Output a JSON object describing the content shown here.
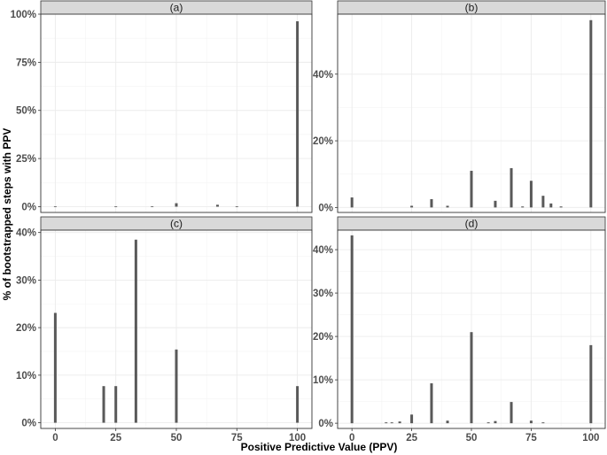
{
  "chart_data": {
    "type": "bar",
    "layout": "facet_wrap_2x2",
    "xlabel": "Positive Predictive Value (PPV)",
    "ylabel": "% of bootstrapped steps with PPV",
    "x_ticks": [
      0,
      25,
      50,
      75,
      100
    ],
    "x_tick_labels": [
      "0",
      "25",
      "50",
      "75",
      "100"
    ],
    "xlim": [
      -6,
      106
    ],
    "grid": true,
    "colors": {
      "bar": "#595959",
      "strip": "#d9d9d9",
      "strip_border": "#333333",
      "grid": "#ebebeb",
      "panel_border": "#333333"
    },
    "panels": [
      {
        "strip": "(a)",
        "ylim": [
          -0.03,
          1.0
        ],
        "y_ticks": [
          0,
          0.25,
          0.5,
          0.75,
          1.0
        ],
        "y_tick_labels": [
          "0%",
          "25%",
          "50%",
          "75%",
          "100%"
        ],
        "bars": [
          {
            "x": 0,
            "y": 0.002
          },
          {
            "x": 25,
            "y": 0.002
          },
          {
            "x": 40,
            "y": 0.002
          },
          {
            "x": 50,
            "y": 0.018
          },
          {
            "x": 67,
            "y": 0.01
          },
          {
            "x": 75,
            "y": 0.002
          },
          {
            "x": 100,
            "y": 0.963
          }
        ]
      },
      {
        "strip": "(b)",
        "ylim": [
          -0.015,
          0.58
        ],
        "y_ticks": [
          0,
          0.2,
          0.4
        ],
        "y_tick_labels": [
          "0%",
          "20%",
          "40%"
        ],
        "bars": [
          {
            "x": 0,
            "y": 0.03
          },
          {
            "x": 25,
            "y": 0.005
          },
          {
            "x": 33.3,
            "y": 0.025
          },
          {
            "x": 40,
            "y": 0.005
          },
          {
            "x": 50,
            "y": 0.11
          },
          {
            "x": 60,
            "y": 0.02
          },
          {
            "x": 66.7,
            "y": 0.118
          },
          {
            "x": 71.4,
            "y": 0.003
          },
          {
            "x": 75,
            "y": 0.08
          },
          {
            "x": 80,
            "y": 0.035
          },
          {
            "x": 83.3,
            "y": 0.012
          },
          {
            "x": 87.5,
            "y": 0.003
          },
          {
            "x": 100,
            "y": 0.562
          }
        ]
      },
      {
        "strip": "(c)",
        "ylim": [
          -0.012,
          0.405
        ],
        "y_ticks": [
          0,
          0.1,
          0.2,
          0.3,
          0.4
        ],
        "y_tick_labels": [
          "0%",
          "10%",
          "20%",
          "30%",
          "40%"
        ],
        "bars": [
          {
            "x": 0,
            "y": 0.231
          },
          {
            "x": 20,
            "y": 0.077
          },
          {
            "x": 25,
            "y": 0.077
          },
          {
            "x": 33.3,
            "y": 0.385
          },
          {
            "x": 50,
            "y": 0.154
          },
          {
            "x": 100,
            "y": 0.077
          }
        ]
      },
      {
        "strip": "(d)",
        "ylim": [
          -0.012,
          0.445
        ],
        "y_ticks": [
          0,
          0.1,
          0.2,
          0.3,
          0.4
        ],
        "y_tick_labels": [
          "0%",
          "10%",
          "20%",
          "30%",
          "40%"
        ],
        "bars": [
          {
            "x": 0,
            "y": 0.433
          },
          {
            "x": 14.3,
            "y": 0.002
          },
          {
            "x": 16.7,
            "y": 0.002
          },
          {
            "x": 20,
            "y": 0.004
          },
          {
            "x": 25,
            "y": 0.02
          },
          {
            "x": 33.3,
            "y": 0.092
          },
          {
            "x": 40,
            "y": 0.006
          },
          {
            "x": 50,
            "y": 0.21
          },
          {
            "x": 57.1,
            "y": 0.002
          },
          {
            "x": 60,
            "y": 0.005
          },
          {
            "x": 66.7,
            "y": 0.049
          },
          {
            "x": 75,
            "y": 0.006
          },
          {
            "x": 80,
            "y": 0.002
          },
          {
            "x": 100,
            "y": 0.18
          }
        ]
      }
    ]
  }
}
